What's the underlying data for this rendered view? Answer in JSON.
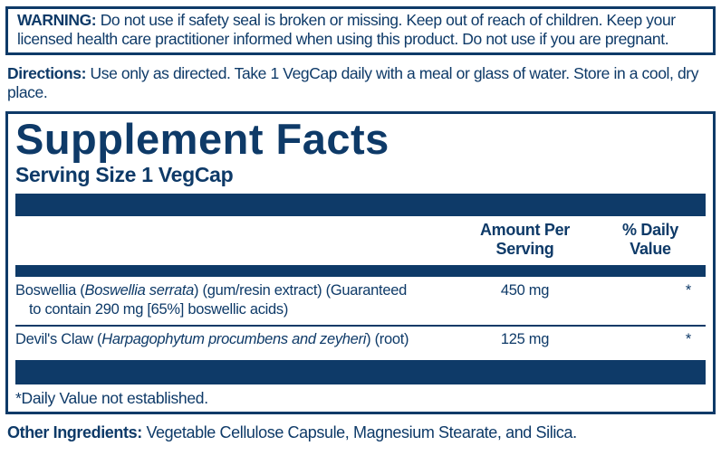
{
  "colors": {
    "navy": "#0e3a68"
  },
  "warning": {
    "label": "WARNING:",
    "text": "Do not use if safety seal is broken or missing. Keep out of reach of children. Keep your licensed health care practitioner informed when using this product. Do not use if you are pregnant."
  },
  "directions": {
    "label": "Directions:",
    "text": "Use only as directed. Take 1 VegCap daily with a meal or glass of water. Store in a cool, dry place."
  },
  "supplement_facts": {
    "title": "Supplement Facts",
    "serving_size": "Serving Size 1 VegCap",
    "columns": {
      "amount": [
        "Amount Per",
        "Serving"
      ],
      "daily_value": [
        "% Daily",
        "Value"
      ]
    },
    "rows": [
      {
        "name_pre": "Boswellia (",
        "name_italic": "Boswellia serrata",
        "name_post": ") (gum/resin extract) (Guaranteed",
        "name_line2": "to contain 290 mg [65%] boswellic acids)",
        "amount": "450 mg",
        "daily_value": "*"
      },
      {
        "name_pre": "Devil's Claw (",
        "name_italic": "Harpagophytum procumbens and zeyheri",
        "name_post": ") (root)",
        "amount": "125 mg",
        "daily_value": "*"
      }
    ],
    "footnote": "*Daily Value not established."
  },
  "other_ingredients": {
    "label": "Other Ingredients:",
    "text": "Vegetable Cellulose Capsule, Magnesium Stearate, and Silica."
  }
}
